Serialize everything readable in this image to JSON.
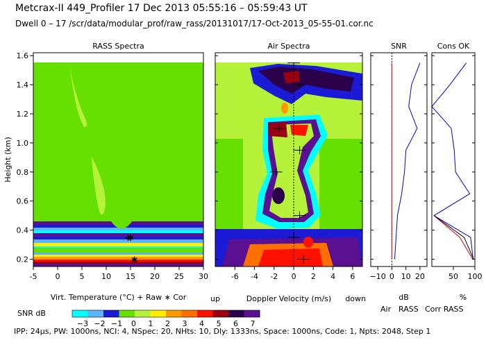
{
  "header": {
    "title_line1": "Metcrax-II  449_Profiler  17 Dec 2013  05:55:16 – 05:59:43 UT",
    "title_line2": "Dwell  0 – 17   /scr/data/modular_prof/raw_rass/20131017/17-Oct-2013_05-55-01.cor.nc"
  },
  "footer": {
    "text": "IPP:  24µs,  PW: 1000ns,  NCI: 4,  NSpec: 20, NHts: 10,  Dly: 1333ns,  Space: 1000ns,  Code: 1,  Npts: 2048,  Step 1"
  },
  "colors": {
    "green": "#66e000",
    "light_green": "#b6f23a",
    "yellow": "#ffee00",
    "orange": "#ff9900",
    "dark_orange": "#ff7000",
    "red": "#ff1100",
    "dark_red": "#9a0010",
    "dark_purple": "#2a004a",
    "purple": "#5a1090",
    "blue": "#1b1bd6",
    "light_blue": "#5ab4ff",
    "cyan": "#00ffff",
    "air_line": "#0000cc",
    "rass_line": "#dd0000"
  },
  "chart_data": [
    {
      "type": "heatmap",
      "title": "RASS Spectra",
      "ylabel": "Height (km)",
      "xlabel": "Virt. Temperature (°C)  + Raw  ∗ Cor",
      "xlim": [
        -5,
        30
      ],
      "ylim": [
        0.15,
        1.62
      ],
      "x_ticks": [
        -5,
        0,
        5,
        10,
        15,
        20,
        25,
        30
      ],
      "y_ticks": [
        0.2,
        0.4,
        0.6,
        0.8,
        1.0,
        1.2,
        1.4,
        1.6
      ],
      "y_tick_labels": [
        "0.2",
        "0.4",
        "0.6",
        "0.8",
        "1.0",
        "1.2",
        "1.4",
        "1.6"
      ],
      "markers": [
        {
          "label": "+ Raw",
          "x": 14.5,
          "y": 0.35
        },
        {
          "label": "∗ Cor",
          "x": 15.0,
          "y": 0.35
        },
        {
          "label": "∗ Cor",
          "x": 15.8,
          "y": 0.2
        }
      ]
    },
    {
      "type": "heatmap",
      "title": "Air Spectra",
      "xlabel": "Doppler Velocity (m/s)",
      "xlabel_left": "up",
      "xlabel_right": "down",
      "xlim": [
        -8,
        7
      ],
      "x_ticks": [
        -6,
        -4,
        -2,
        0,
        2,
        4,
        6
      ],
      "peaks": [
        {
          "x": 0.0,
          "y": 1.55
        },
        {
          "x": 0.6,
          "y": 1.4
        },
        {
          "x": -1.5,
          "y": 1.1
        },
        {
          "x": 0.6,
          "y": 0.95
        },
        {
          "x": -1.8,
          "y": 0.8
        },
        {
          "x": 0.6,
          "y": 0.5
        },
        {
          "x": 0.0,
          "y": 0.35
        },
        {
          "x": 1.0,
          "y": 0.2
        }
      ]
    },
    {
      "type": "line",
      "title": "SNR",
      "xlabel": "dB",
      "xlim": [
        -15,
        25
      ],
      "x_ticks": [
        -10,
        0,
        10,
        20
      ],
      "x_tick_labels": [
        "−10",
        "0",
        "10",
        "20"
      ],
      "heights": [
        0.2,
        0.35,
        0.5,
        0.65,
        0.8,
        0.95,
        1.1,
        1.25,
        1.4,
        1.55
      ],
      "series": [
        {
          "name": "Air",
          "values": [
            2,
            3,
            4,
            7,
            9,
            10,
            18,
            12,
            14,
            20
          ]
        },
        {
          "name": "RASS",
          "values": [
            0,
            0,
            0,
            0,
            0,
            0,
            0,
            0,
            0,
            0
          ]
        }
      ]
    },
    {
      "type": "line",
      "title": "Cons OK",
      "xlabel": "%",
      "xlim": [
        0,
        100
      ],
      "x_ticks": [
        50,
        100
      ],
      "heights": [
        0.2,
        0.35,
        0.5,
        0.65,
        0.8,
        0.95,
        1.1,
        1.25,
        1.4,
        1.55
      ],
      "series": [
        {
          "name": "Air",
          "values": [
            96,
            90,
            5,
            88,
            55,
            52,
            45,
            0,
            42,
            80
          ]
        },
        {
          "name": "RASS",
          "values": [
            95,
            65,
            5,
            null,
            null,
            null,
            null,
            null,
            null,
            null
          ]
        },
        {
          "name": "Corr RASS",
          "values": [
            97,
            75,
            5,
            null,
            null,
            null,
            null,
            null,
            null,
            null
          ]
        }
      ]
    },
    {
      "type": "table",
      "title": "SNR dB",
      "categories": [
        "−3",
        "−2",
        "−1",
        "0",
        "1",
        "2",
        "3",
        "4",
        "5",
        "6",
        "7"
      ]
    }
  ]
}
